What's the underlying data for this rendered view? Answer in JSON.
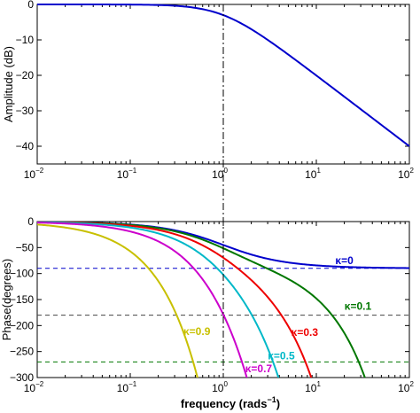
{
  "chart_data": [
    {
      "type": "line",
      "xscale": "log",
      "xlim": [
        0.01,
        100
      ],
      "ylim": [
        -45,
        0
      ],
      "xticks": [
        {
          "base": "10",
          "exp": "−2"
        },
        {
          "base": "10",
          "exp": "−1"
        },
        {
          "base": "10",
          "exp": "0"
        },
        {
          "base": "10",
          "exp": "1"
        },
        {
          "base": "10",
          "exp": "2"
        }
      ],
      "yticks": [
        "0",
        "−10",
        "−20",
        "−30",
        "−40"
      ],
      "ytick_values": [
        0,
        -10,
        -20,
        -30,
        -40
      ],
      "ylabel": "Amplitude (dB)",
      "xlabel": "",
      "vline_x": 1,
      "series": [
        {
          "color": "#0000cc",
          "model": "first_order_lowpass",
          "x": [
            0.01,
            0.1,
            0.3,
            1,
            3,
            10,
            30,
            100
          ],
          "values": [
            0.0,
            -0.04,
            -0.37,
            -3.01,
            -10.0,
            -20.04,
            -29.54,
            -40.0
          ]
        }
      ]
    },
    {
      "type": "line",
      "xscale": "log",
      "xlim": [
        0.01,
        100
      ],
      "ylim": [
        -300,
        0
      ],
      "xticks": [
        {
          "base": "10",
          "exp": "−2"
        },
        {
          "base": "10",
          "exp": "−1"
        },
        {
          "base": "10",
          "exp": "0"
        },
        {
          "base": "10",
          "exp": "1"
        },
        {
          "base": "10",
          "exp": "2"
        }
      ],
      "yticks": [
        "0",
        "−50",
        "−100",
        "−150",
        "−200",
        "−250",
        "−300"
      ],
      "ytick_values": [
        0,
        -50,
        -100,
        -150,
        -200,
        -250,
        -300
      ],
      "ylabel": "Phase(degrees)",
      "xlabel_main": "frequency (rads",
      "xlabel_sup": "−1",
      "xlabel_close": ")",
      "vline_x": 1,
      "hlines": [
        {
          "y": -90,
          "color": "#0000cc"
        },
        {
          "y": -180,
          "color": "#444444"
        },
        {
          "y": -270,
          "color": "#007700"
        }
      ],
      "series": [
        {
          "name": "κ=0",
          "kappa": 0,
          "color": "#0000cc",
          "label_at": [
            20,
            -82
          ]
        },
        {
          "name": "κ=0.1",
          "kappa": 0.1,
          "color": "#007700",
          "label_at": [
            28,
            -170
          ]
        },
        {
          "name": "κ=0.3",
          "kappa": 0.3,
          "color": "#ee0000",
          "label_at": [
            7.5,
            -220
          ]
        },
        {
          "name": "κ=0.5",
          "kappa": 0.5,
          "color": "#00b8c8",
          "label_at": [
            4.2,
            -265
          ]
        },
        {
          "name": "κ=0.7",
          "kappa": 0.7,
          "color": "#cc00cc",
          "label_at": [
            2.4,
            -290
          ]
        },
        {
          "name": "κ=0.9",
          "kappa": 0.9,
          "color": "#c8c000",
          "label_at": [
            0.52,
            -218
          ]
        }
      ]
    }
  ]
}
